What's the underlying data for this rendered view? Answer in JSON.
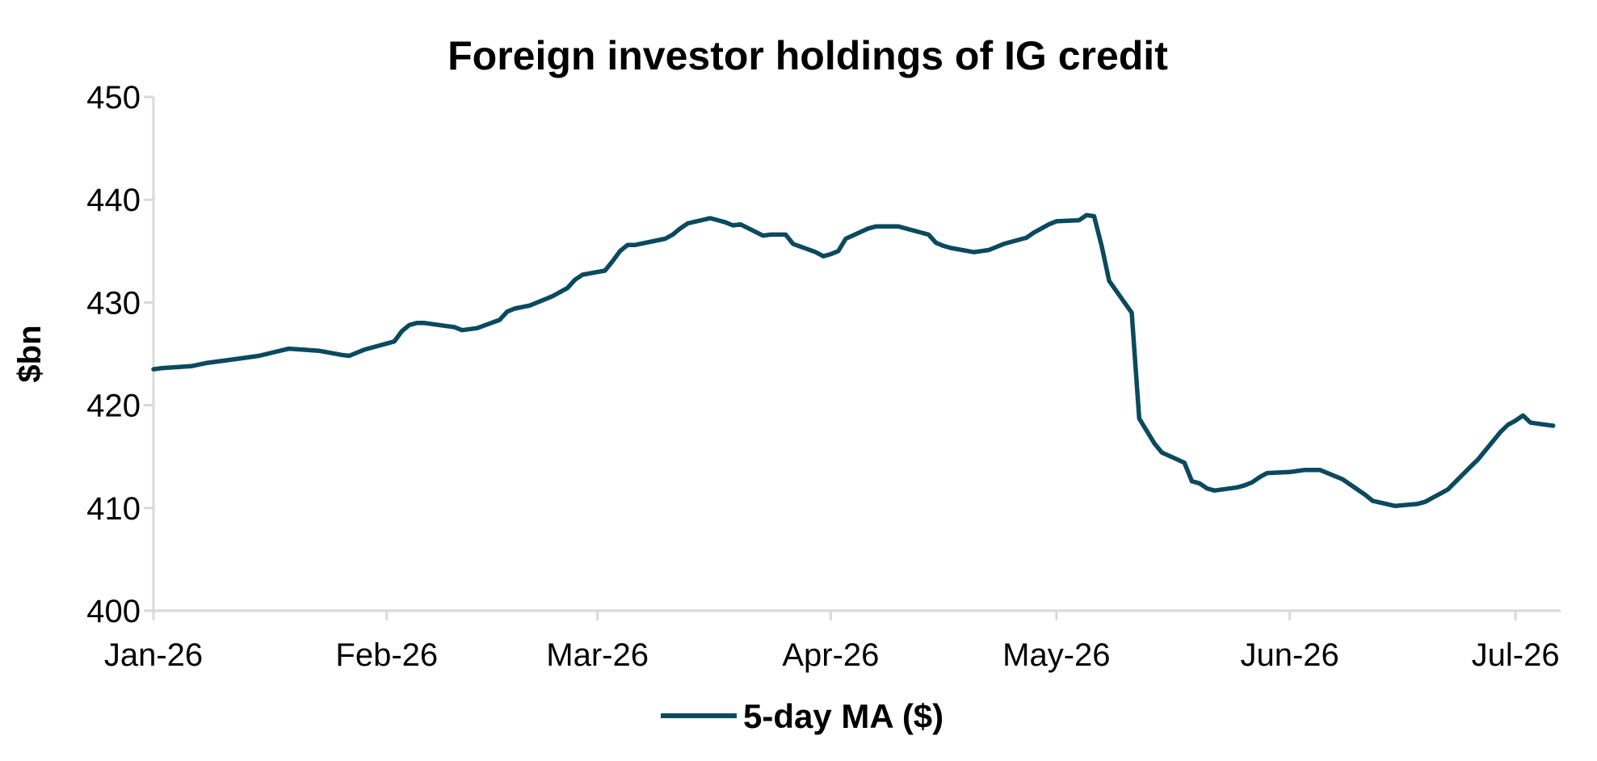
{
  "chart_data": {
    "type": "line",
    "title": "Foreign investor holdings of IG credit",
    "xlabel": "",
    "ylabel": "$bn",
    "ylim": [
      400,
      450
    ],
    "yticks": [
      "400",
      "410",
      "420",
      "430",
      "440",
      "450"
    ],
    "xlim": [
      "2026-01-01",
      "2026-07-07"
    ],
    "xticks": [
      {
        "label": "Jan-26",
        "date": "2026-01-01"
      },
      {
        "label": "Feb-26",
        "date": "2026-02-01"
      },
      {
        "label": "Mar-26",
        "date": "2026-03-01"
      },
      {
        "label": "Apr-26",
        "date": "2026-04-01"
      },
      {
        "label": "May-26",
        "date": "2026-05-01"
      },
      {
        "label": "Jun-26",
        "date": "2026-06-01"
      },
      {
        "label": "Jul-26",
        "date": "2026-07-01"
      }
    ],
    "grid": false,
    "legend_position": "bottom-center",
    "series": [
      {
        "name": "5-day MA ($)",
        "color": "#0b4a5e",
        "x": [
          "2026-01-01",
          "2026-01-02",
          "2026-01-06",
          "2026-01-08",
          "2026-01-12",
          "2026-01-15",
          "2026-01-19",
          "2026-01-21",
          "2026-01-23",
          "2026-01-26",
          "2026-01-27",
          "2026-01-29",
          "2026-02-02",
          "2026-02-03",
          "2026-02-04",
          "2026-02-05",
          "2026-02-06",
          "2026-02-09",
          "2026-02-10",
          "2026-02-11",
          "2026-02-13",
          "2026-02-16",
          "2026-02-17",
          "2026-02-18",
          "2026-02-20",
          "2026-02-23",
          "2026-02-24",
          "2026-02-25",
          "2026-02-26",
          "2026-02-27",
          "2026-03-02",
          "2026-03-03",
          "2026-03-04",
          "2026-03-05",
          "2026-03-06",
          "2026-03-10",
          "2026-03-11",
          "2026-03-12",
          "2026-03-13",
          "2026-03-16",
          "2026-03-17",
          "2026-03-18",
          "2026-03-19",
          "2026-03-20",
          "2026-03-23",
          "2026-03-24",
          "2026-03-25",
          "2026-03-26",
          "2026-03-27",
          "2026-03-30",
          "2026-03-31",
          "2026-04-01",
          "2026-04-02",
          "2026-04-03",
          "2026-04-06",
          "2026-04-07",
          "2026-04-09",
          "2026-04-10",
          "2026-04-13",
          "2026-04-14",
          "2026-04-15",
          "2026-04-16",
          "2026-04-17",
          "2026-04-20",
          "2026-04-21",
          "2026-04-22",
          "2026-04-24",
          "2026-04-27",
          "2026-04-28",
          "2026-04-29",
          "2026-04-30",
          "2026-05-01",
          "2026-05-04",
          "2026-05-05",
          "2026-05-06",
          "2026-05-07",
          "2026-05-08",
          "2026-05-11",
          "2026-05-12",
          "2026-05-14",
          "2026-05-15",
          "2026-05-18",
          "2026-05-19",
          "2026-05-20",
          "2026-05-21",
          "2026-05-22",
          "2026-05-25",
          "2026-05-26",
          "2026-05-27",
          "2026-05-28",
          "2026-05-29",
          "2026-06-01",
          "2026-06-02",
          "2026-06-03",
          "2026-06-05",
          "2026-06-08",
          "2026-06-11",
          "2026-06-12",
          "2026-06-15",
          "2026-06-18",
          "2026-06-19",
          "2026-06-22",
          "2026-06-25",
          "2026-06-26",
          "2026-06-29",
          "2026-06-30",
          "2026-07-01",
          "2026-07-02",
          "2026-07-03",
          "2026-07-06"
        ],
        "values": [
          423.5,
          423.6,
          423.8,
          424.1,
          424.5,
          424.8,
          425.5,
          425.4,
          425.3,
          424.9,
          424.8,
          425.4,
          426.2,
          427.2,
          427.8,
          428.0,
          428.0,
          427.7,
          427.6,
          427.3,
          427.5,
          428.3,
          429.1,
          429.4,
          429.7,
          430.6,
          431.0,
          431.4,
          432.2,
          432.7,
          433.1,
          434.0,
          435.0,
          435.6,
          435.6,
          436.2,
          436.6,
          437.2,
          437.7,
          438.2,
          438.0,
          437.8,
          437.5,
          437.6,
          436.5,
          436.6,
          436.6,
          436.6,
          435.7,
          434.9,
          434.5,
          434.7,
          435.0,
          436.2,
          437.2,
          437.4,
          437.4,
          437.4,
          436.8,
          436.6,
          435.8,
          435.5,
          435.3,
          434.9,
          435.0,
          435.1,
          435.7,
          436.3,
          436.8,
          437.2,
          437.6,
          437.9,
          438.0,
          438.5,
          438.4,
          435.5,
          432.1,
          429.0,
          418.7,
          416.3,
          415.4,
          414.4,
          412.6,
          412.4,
          411.9,
          411.7,
          412.0,
          412.2,
          412.5,
          413.0,
          413.4,
          413.5,
          413.6,
          413.7,
          413.7,
          412.8,
          411.3,
          410.7,
          410.2,
          410.4,
          410.6,
          411.8,
          414.0,
          414.7,
          417.4,
          418.1,
          418.5,
          419.0,
          418.3,
          418.0
        ]
      }
    ]
  }
}
